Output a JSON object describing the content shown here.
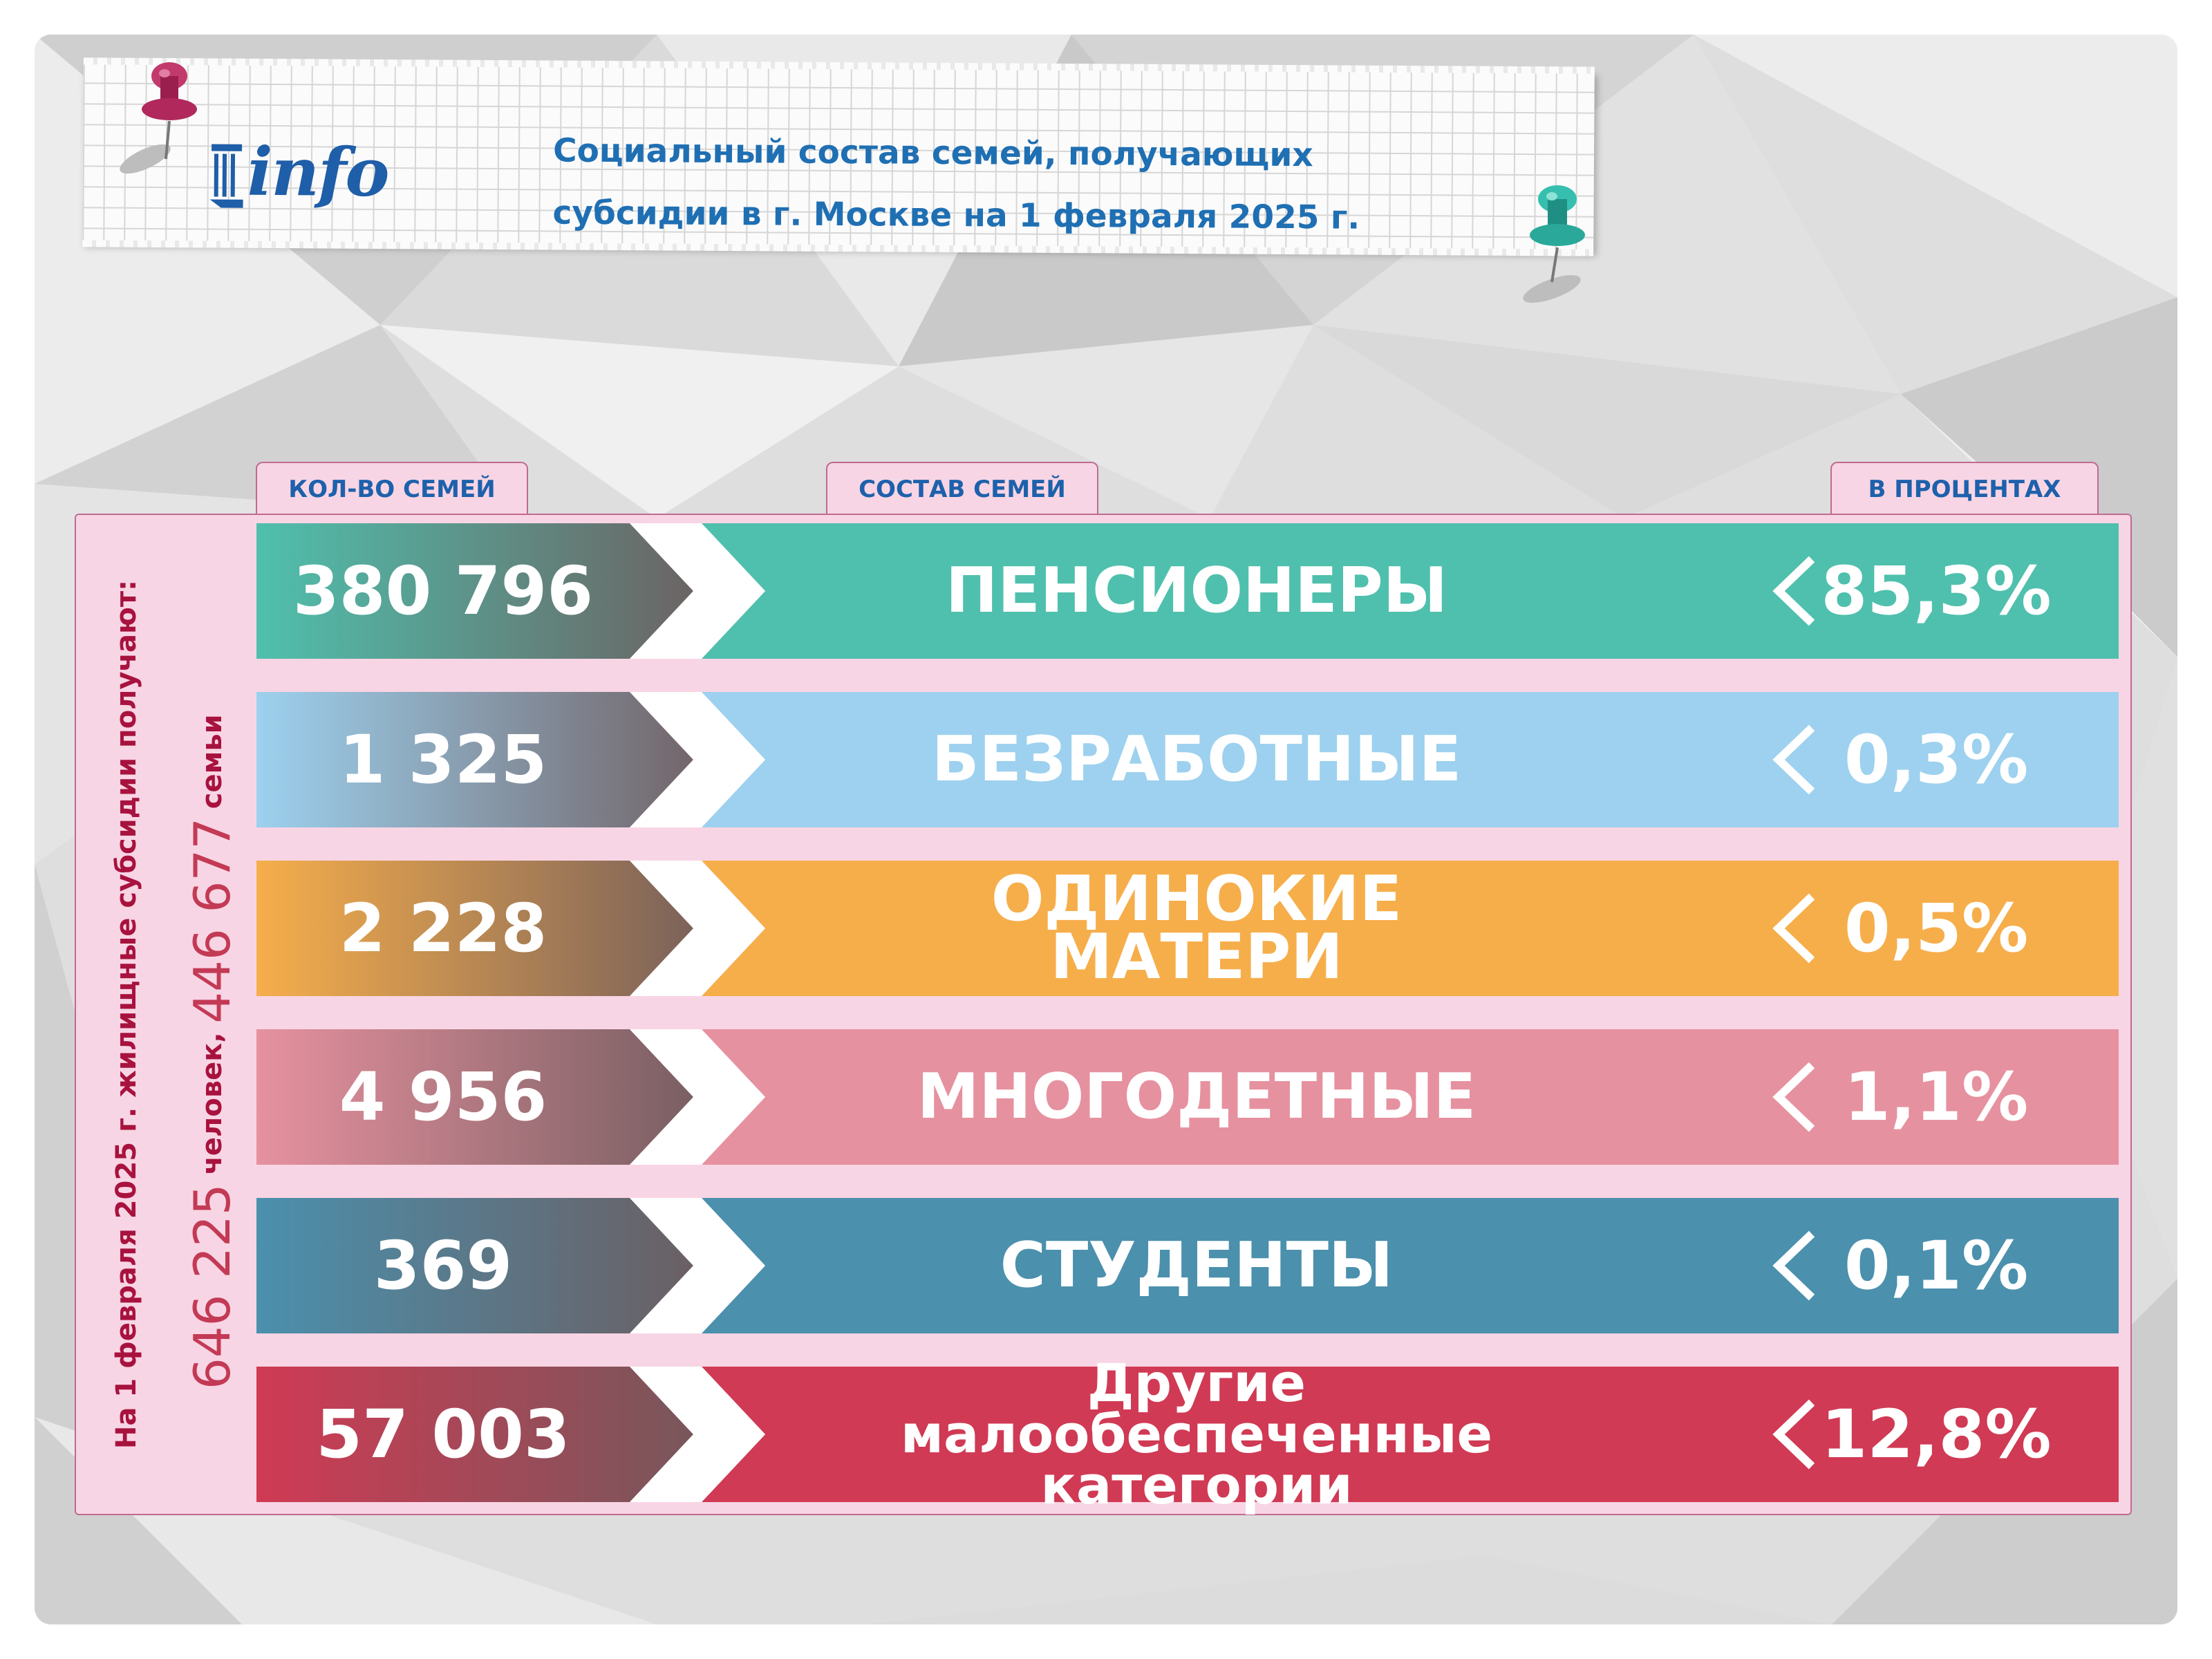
{
  "title": {
    "line1": "Социальный состав семей, получающих",
    "line2": "субсидии в г. Москве на 1 февраля 2025 г."
  },
  "logo": {
    "text": "info",
    "brand_color": "#1f5ea8"
  },
  "headers": {
    "count": "КОЛ-ВО СЕМЕЙ",
    "composition": "СОСТАВ СЕМЕЙ",
    "percent": "В ПРОЦЕНТАХ"
  },
  "side": {
    "caption": "На 1 февраля 2025 г. жилищные субсидии получают:",
    "people_value": "646 225",
    "people_label": "человек,",
    "families_value": "446 677",
    "families_label": "семьи"
  },
  "rows": [
    {
      "count": "380 796",
      "label": "ПЕНСИОНЕРЫ",
      "percent": "85,3%",
      "color": "#4fc0ad"
    },
    {
      "count": "1 325",
      "label": "БЕЗРАБОТНЫЕ",
      "percent": "0,3%",
      "color": "#9dd1ef"
    },
    {
      "count": "2 228",
      "label": "ОДИНОКИЕ МАТЕРИ",
      "percent": "0,5%",
      "color": "#f6ae4b"
    },
    {
      "count": "4 956",
      "label": "МНОГОДЕТНЫЕ",
      "percent": "1,1%",
      "color": "#e6919f"
    },
    {
      "count": "369",
      "label": "СТУДЕНТЫ",
      "percent": "0,1%",
      "color": "#4b90ad"
    },
    {
      "count": "57 003",
      "label": "Другие малообеспеченные категории",
      "percent": "12,8%",
      "color": "#d03a54"
    }
  ],
  "colors": {
    "panel_pink": "#f8d5e4",
    "panel_border": "#c06a92",
    "header_text": "#1d61ab",
    "side_text": "#a8123e",
    "pin_red": "#b0285c",
    "pin_teal": "#2aa89a"
  }
}
